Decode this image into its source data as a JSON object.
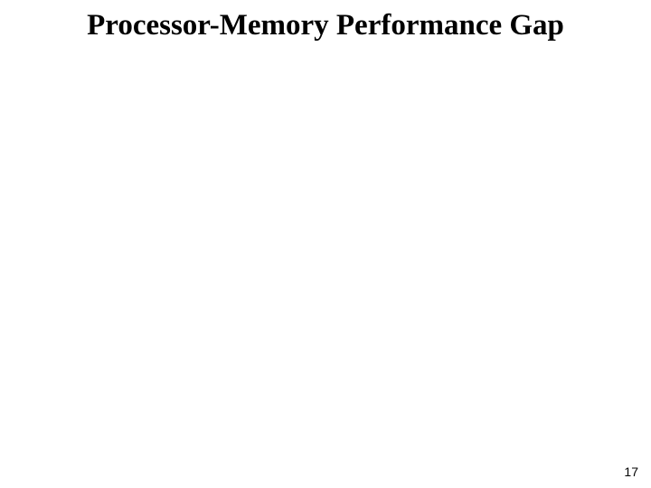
{
  "slide": {
    "title": "Processor-Memory Performance Gap",
    "page_number": "17",
    "background_color": "#ffffff",
    "title_color": "#000000",
    "title_fontsize": 33,
    "title_fontweight": "bold",
    "page_number_fontsize": 14,
    "page_number_color": "#000000"
  }
}
